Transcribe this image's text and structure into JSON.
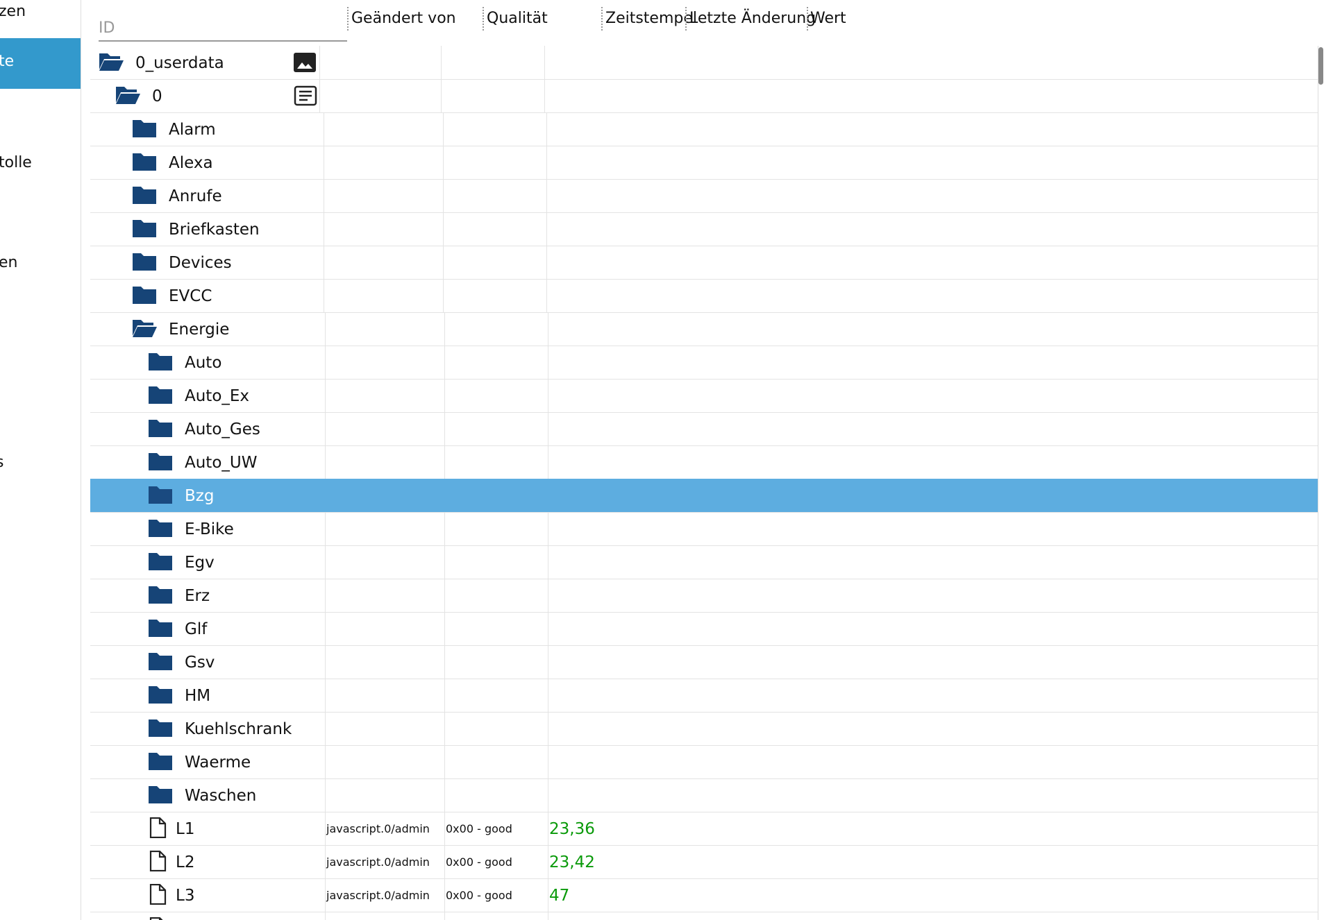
{
  "sidebar": {
    "items": [
      "zen",
      "te",
      "tolle",
      "en",
      "s"
    ],
    "selected": 1
  },
  "header": {
    "id_placeholder": "ID",
    "columns": [
      "Geändert von",
      "Qualität",
      "Zeitstempel",
      "Letzte Änderung",
      "Wert"
    ]
  },
  "rows": [
    {
      "name": "0_userdata",
      "level": 0,
      "icon": "folder-open",
      "action": "image"
    },
    {
      "name": "0",
      "level": 1,
      "icon": "folder-open",
      "action": "list"
    },
    {
      "name": "Alarm",
      "level": 2,
      "icon": "folder"
    },
    {
      "name": "Alexa",
      "level": 2,
      "icon": "folder"
    },
    {
      "name": "Anrufe",
      "level": 2,
      "icon": "folder"
    },
    {
      "name": "Briefkasten",
      "level": 2,
      "icon": "folder"
    },
    {
      "name": "Devices",
      "level": 2,
      "icon": "folder"
    },
    {
      "name": "EVCC",
      "level": 2,
      "icon": "folder"
    },
    {
      "name": "Energie",
      "level": 2,
      "icon": "folder-open"
    },
    {
      "name": "Auto",
      "level": 3,
      "icon": "folder"
    },
    {
      "name": "Auto_Ex",
      "level": 3,
      "icon": "folder"
    },
    {
      "name": "Auto_Ges",
      "level": 3,
      "icon": "folder"
    },
    {
      "name": "Auto_UW",
      "level": 3,
      "icon": "folder"
    },
    {
      "name": "Bzg",
      "level": 3,
      "icon": "folder",
      "selected": true
    },
    {
      "name": "E-Bike",
      "level": 3,
      "icon": "folder"
    },
    {
      "name": "Egv",
      "level": 3,
      "icon": "folder"
    },
    {
      "name": "Erz",
      "level": 3,
      "icon": "folder"
    },
    {
      "name": "Glf",
      "level": 3,
      "icon": "folder"
    },
    {
      "name": "Gsv",
      "level": 3,
      "icon": "folder"
    },
    {
      "name": "HM",
      "level": 3,
      "icon": "folder"
    },
    {
      "name": "Kuehlschrank",
      "level": 3,
      "icon": "folder"
    },
    {
      "name": "Waerme",
      "level": 3,
      "icon": "folder"
    },
    {
      "name": "Waschen",
      "level": 3,
      "icon": "folder"
    },
    {
      "name": "L1",
      "level": 3,
      "icon": "file",
      "changed_by": "javascript.0/admin",
      "quality": "0x00 - good",
      "value": "23,36"
    },
    {
      "name": "L2",
      "level": 3,
      "icon": "file",
      "changed_by": "javascript.0/admin",
      "quality": "0x00 - good",
      "value": "23,42"
    },
    {
      "name": "L3",
      "level": 3,
      "icon": "file",
      "changed_by": "javascript.0/admin",
      "quality": "0x00 - good",
      "value": "47"
    },
    {
      "level": 3,
      "icon": "file"
    }
  ]
}
